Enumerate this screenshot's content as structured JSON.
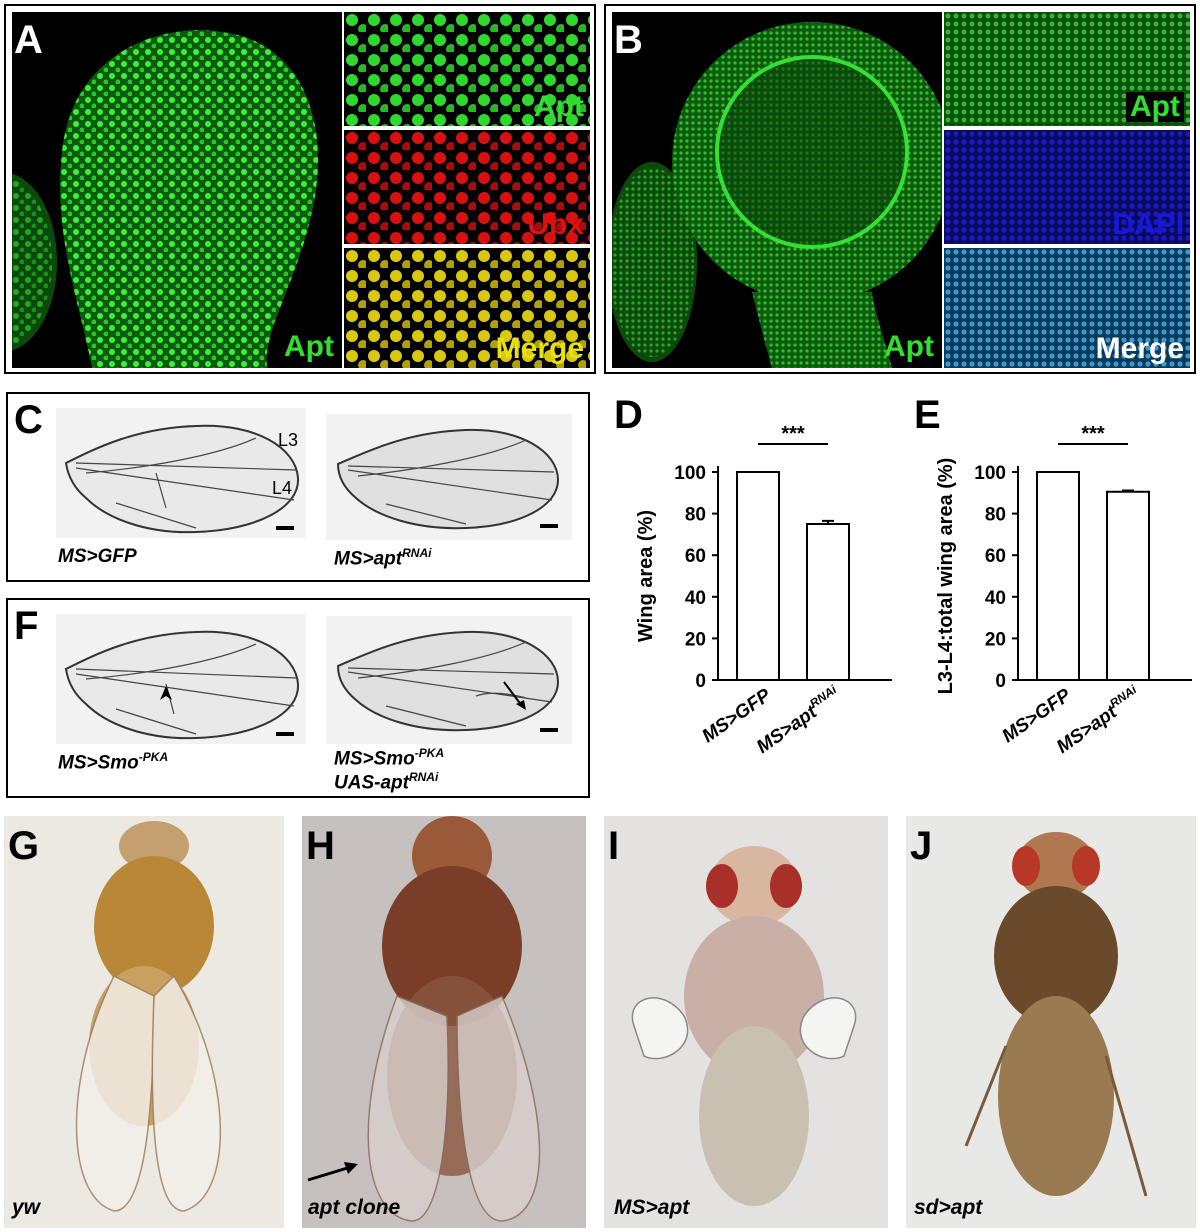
{
  "panels": {
    "A": {
      "letter": "A",
      "main_label": "Apt",
      "sub_labels": [
        "Apt",
        "Ubx",
        "Merge"
      ]
    },
    "B": {
      "letter": "B",
      "main_label": "Apt",
      "sub_labels": [
        "Apt",
        "DAPI",
        "Merge"
      ]
    },
    "C": {
      "letter": "C",
      "vein_labels": [
        "L3",
        "L4"
      ],
      "left_genotype": "MS>GFP",
      "right_genotype_base": "MS>apt",
      "right_genotype_sup": "RNAi"
    },
    "F": {
      "letter": "F",
      "left_genotype_base": "MS>Smo",
      "left_genotype_sup": "-PKA",
      "right_line1_base": "MS>Smo",
      "right_line1_sup": "-PKA",
      "right_line2_base": "UAS-apt",
      "right_line2_sup": "RNAi"
    },
    "G": {
      "letter": "G",
      "caption": "yw"
    },
    "H": {
      "letter": "H",
      "caption": "apt clone"
    },
    "I": {
      "letter": "I",
      "caption": "MS>apt"
    },
    "J": {
      "letter": "J",
      "caption": "sd>apt"
    }
  },
  "colors": {
    "green": "#2fe02f",
    "red": "#e01010",
    "yellow": "#e8e010",
    "blue": "#1818d8",
    "white": "#ffffff"
  },
  "chart_data": [
    {
      "panel": "D",
      "type": "bar",
      "categories": [
        "MS>GFP",
        "MS>apt^RNAi"
      ],
      "category_bases": [
        "MS>GFP",
        "MS>apt"
      ],
      "category_sups": [
        "",
        "RNAi"
      ],
      "values": [
        100,
        75
      ],
      "errors": [
        0,
        1.5
      ],
      "ylabel": "Wing area (%)",
      "ylim": [
        0,
        100
      ],
      "yticks": [
        0,
        20,
        40,
        60,
        80,
        100
      ],
      "significance": "***"
    },
    {
      "panel": "E",
      "type": "bar",
      "categories": [
        "MS>GFP",
        "MS>apt^RNAi"
      ],
      "category_bases": [
        "MS>GFP",
        "MS>apt"
      ],
      "category_sups": [
        "",
        "RNAi"
      ],
      "values": [
        100,
        90.5
      ],
      "errors": [
        0,
        0.6
      ],
      "ylabel": "L3-L4:total wing area (%)",
      "ylim": [
        0,
        100
      ],
      "yticks": [
        0,
        20,
        40,
        60,
        80,
        100
      ],
      "significance": "***"
    }
  ]
}
